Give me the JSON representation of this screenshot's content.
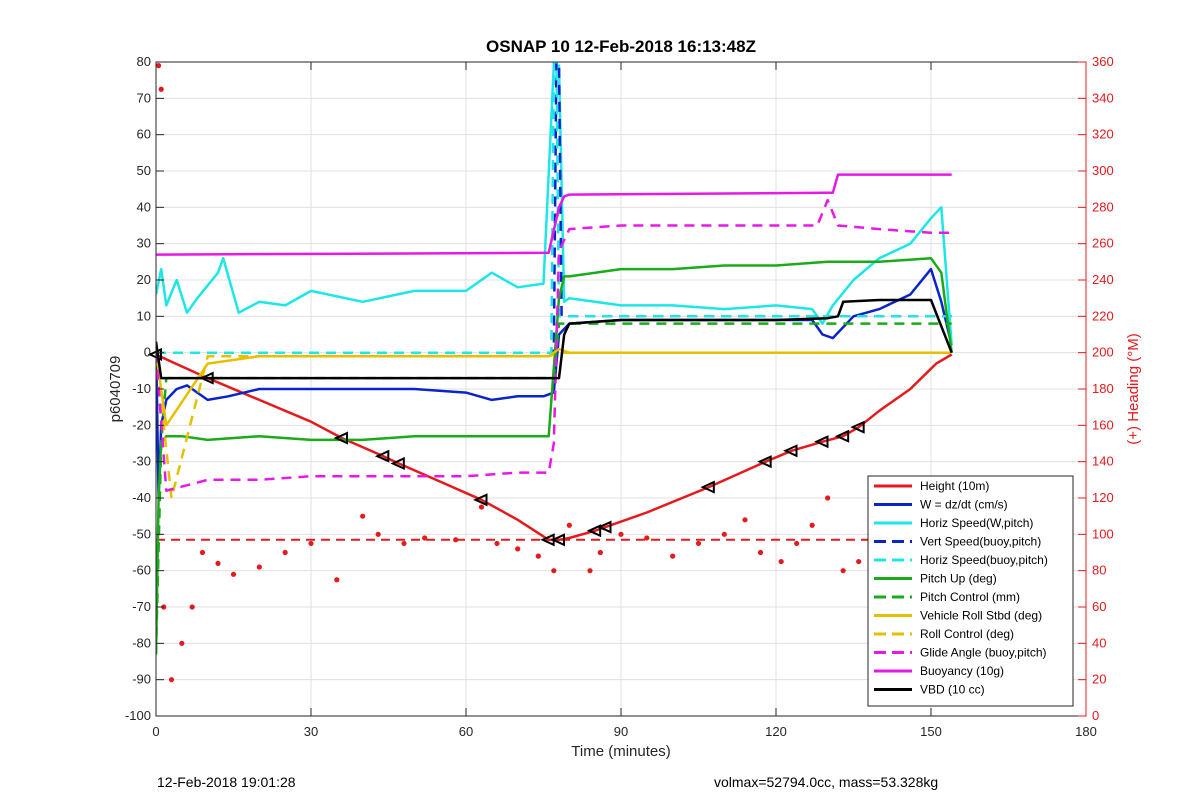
{
  "chart_data": {
    "type": "line",
    "title": "OSNAP 10 12-Feb-2018 16:13:48Z",
    "xlabel": "Time (minutes)",
    "ylabel": "p6040709",
    "y2label": "(+) Heading (°M)",
    "xlim": [
      0,
      180
    ],
    "ylim": [
      -100,
      80
    ],
    "y2lim": [
      0,
      360
    ],
    "xticks": [
      0,
      30,
      60,
      90,
      120,
      150,
      180
    ],
    "yticks": [
      -100,
      -90,
      -80,
      -70,
      -60,
      -50,
      -40,
      -30,
      -20,
      -10,
      0,
      10,
      20,
      30,
      40,
      50,
      60,
      70,
      80
    ],
    "y2ticks": [
      0,
      20,
      40,
      60,
      80,
      100,
      120,
      140,
      160,
      180,
      200,
      220,
      240,
      260,
      280,
      300,
      320,
      340,
      360
    ],
    "grid": true,
    "legend_position": "lower-right",
    "series": [
      {
        "name": "Height (10m)",
        "color": "#e41a1c",
        "style": "solid",
        "x": [
          0,
          3,
          10,
          20,
          30,
          36,
          44,
          47,
          55,
          63,
          70,
          76,
          78,
          80,
          85,
          87,
          95,
          107,
          118,
          123,
          129,
          133,
          136,
          140,
          146,
          151,
          154
        ],
        "y": [
          -0.5,
          -2.5,
          -7,
          -13,
          -19,
          -23.5,
          -28.5,
          -30.5,
          -35.5,
          -40.5,
          -46,
          -51.5,
          -51.5,
          -51,
          -49,
          -48,
          -44,
          -37,
          -30,
          -27,
          -24.5,
          -23,
          -20.5,
          -16,
          -10,
          -3,
          -0.5
        ]
      },
      {
        "name": "W = dz/dt (cm/s)",
        "color": "#0b24c8",
        "style": "solid",
        "x": [
          0,
          0.5,
          1,
          2,
          4,
          6,
          8,
          10,
          14,
          20,
          30,
          40,
          50,
          60,
          65,
          70,
          75,
          77,
          78,
          80,
          90,
          100,
          110,
          120,
          127,
          129,
          131,
          135,
          140,
          146,
          150,
          152,
          154
        ],
        "y": [
          3,
          -40,
          -20,
          -13,
          -10,
          -9,
          -11,
          -13,
          -12,
          -10,
          -10,
          -10,
          -10,
          -11,
          -13,
          -12,
          -12,
          -11,
          5,
          8,
          9,
          9,
          9,
          9,
          9,
          5,
          4,
          10,
          12,
          16,
          23,
          14,
          2
        ]
      },
      {
        "name": "Horiz Speed(W,pitch)",
        "color": "#1de6e6",
        "style": "solid",
        "x": [
          0,
          1,
          2,
          4,
          6,
          8,
          12,
          13,
          16,
          20,
          25,
          30,
          40,
          50,
          60,
          65,
          70,
          75,
          77,
          78,
          79,
          80,
          90,
          100,
          110,
          120,
          127,
          129,
          131,
          135,
          140,
          146,
          150,
          152,
          154
        ],
        "y": [
          16,
          23,
          13,
          20,
          11,
          15,
          22,
          26,
          11,
          14,
          13,
          17,
          14,
          17,
          17,
          22,
          18,
          19,
          79,
          79,
          14,
          15,
          13,
          13,
          12,
          13,
          12,
          8,
          13,
          20,
          26,
          30,
          37,
          40,
          2
        ]
      },
      {
        "name": "Vert Speed(buoy,pitch)",
        "color": "#0b24c8",
        "style": "dashed",
        "x": [
          0,
          77,
          77.5,
          78,
          78.5,
          79,
          154
        ],
        "y": [
          0,
          0,
          80,
          80,
          10,
          10,
          10
        ]
      },
      {
        "name": "Horiz Speed(buoy,pitch)",
        "color": "#1de6e6",
        "style": "dashed",
        "x": [
          0,
          76.5,
          77,
          77.5,
          78,
          154
        ],
        "y": [
          0,
          0,
          80,
          80,
          10,
          10
        ]
      },
      {
        "name": "Pitch Up (deg)",
        "color": "#1aab1a",
        "style": "solid",
        "x": [
          0,
          0.5,
          1,
          2,
          5,
          10,
          20,
          30,
          40,
          50,
          60,
          70,
          76,
          78,
          79,
          80,
          90,
          100,
          110,
          120,
          130,
          140,
          150,
          152,
          154
        ],
        "y": [
          -83,
          -40,
          -25,
          -23,
          -23,
          -24,
          -23,
          -24,
          -24,
          -23,
          -23,
          -23,
          -23,
          15,
          21,
          21,
          23,
          23,
          24,
          24,
          25,
          25,
          26,
          22,
          0
        ]
      },
      {
        "name": "Pitch Control (mm)",
        "color": "#1aab1a",
        "style": "dashed",
        "x": [
          0,
          1,
          2,
          77,
          78,
          79,
          154
        ],
        "y": [
          -83,
          -25,
          -7,
          -7,
          8,
          8,
          8
        ]
      },
      {
        "name": "Vehicle Roll Stbd (deg)",
        "color": "#e6c000",
        "style": "solid",
        "x": [
          0,
          2,
          10,
          20,
          30,
          40,
          50,
          60,
          70,
          76,
          78,
          80,
          90,
          100,
          110,
          120,
          130,
          140,
          150,
          154
        ],
        "y": [
          0,
          -20,
          -3,
          -1,
          -1,
          -1,
          -1,
          -1,
          -1,
          -1,
          1,
          0,
          0,
          0,
          0,
          0,
          0,
          0,
          0,
          0
        ]
      },
      {
        "name": "Roll Control (deg)",
        "color": "#e6c000",
        "style": "dashed",
        "x": [
          0,
          3,
          10,
          20,
          40,
          60,
          76,
          78,
          154
        ],
        "y": [
          0,
          -40,
          -1,
          -1,
          -1,
          -1,
          -1,
          0,
          0
        ]
      },
      {
        "name": "Glide Angle (buoy,pitch)",
        "color": "#e619e6",
        "style": "dashed",
        "x": [
          0,
          2,
          10,
          20,
          30,
          40,
          50,
          60,
          70,
          76,
          77,
          78,
          80,
          90,
          100,
          110,
          120,
          128,
          130,
          132,
          140,
          150,
          154
        ],
        "y": [
          0,
          -38,
          -35,
          -35,
          -34,
          -34,
          -34,
          -34,
          -33,
          -33,
          -25,
          28,
          34,
          35,
          35,
          35,
          35,
          35,
          42,
          35,
          34,
          33,
          33
        ]
      },
      {
        "name": "Buoyancy (10g)",
        "color": "#e619e6",
        "style": "solid",
        "x": [
          0,
          76,
          78,
          79,
          80,
          130,
          131,
          132,
          154
        ],
        "y": [
          27,
          27.5,
          40,
          43,
          43.5,
          44,
          44,
          49,
          49
        ]
      },
      {
        "name": "VBD (10 cc)",
        "color": "#000000",
        "style": "solid",
        "x": [
          0,
          1,
          2,
          5,
          76,
          78,
          79,
          80,
          90,
          100,
          110,
          120,
          130,
          132,
          133,
          140,
          150,
          154
        ],
        "y": [
          3,
          -7,
          -7,
          -7,
          -7,
          -7,
          5,
          8,
          9,
          9,
          9,
          9,
          9.5,
          10,
          14,
          14.5,
          14.5,
          0
        ]
      }
    ],
    "heading_mean_deg": 97,
    "heading_points": {
      "name": "Heading",
      "color": "#e41a1c",
      "x": [
        0.5,
        1,
        1.5,
        3,
        5,
        7,
        9,
        12,
        15,
        20,
        25,
        30,
        35,
        40,
        43,
        48,
        52,
        58,
        63,
        66,
        70,
        74,
        77,
        80,
        84,
        86,
        90,
        95,
        100,
        105,
        110,
        114,
        117,
        121,
        124,
        127,
        130,
        133,
        136,
        140,
        144,
        148,
        152
      ],
      "y": [
        358,
        345,
        60,
        20,
        40,
        60,
        90,
        84,
        78,
        82,
        90,
        95,
        75,
        110,
        100,
        95,
        98,
        97,
        115,
        95,
        92,
        88,
        80,
        105,
        80,
        90,
        100,
        98,
        88,
        95,
        100,
        108,
        90,
        85,
        95,
        105,
        120,
        80,
        85,
        95,
        105,
        98,
        90
      ]
    },
    "footer_left": "12-Feb-2018 19:01:28",
    "footer_right": "volmax=52794.0cc, mass=53.328kg"
  }
}
